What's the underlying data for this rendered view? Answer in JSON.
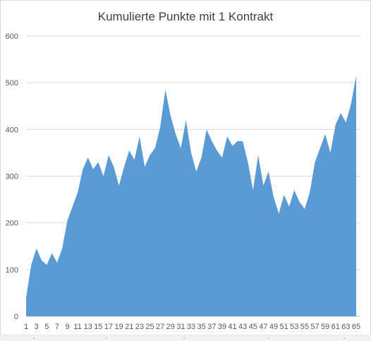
{
  "chart_data": {
    "type": "area",
    "title": "Kumulierte Punkte mit 1 Kontrakt",
    "xlabel": "",
    "ylabel": "",
    "ylim": [
      0,
      600
    ],
    "yticks": [
      0,
      100,
      200,
      300,
      400,
      500,
      600
    ],
    "xticks": [
      1,
      3,
      5,
      7,
      9,
      11,
      13,
      15,
      17,
      19,
      21,
      23,
      25,
      27,
      29,
      31,
      33,
      35,
      37,
      39,
      41,
      43,
      45,
      47,
      49,
      51,
      53,
      55,
      57,
      59,
      61,
      63,
      65
    ],
    "grid": true,
    "legend": "none",
    "color": "#5b9bd5",
    "x": [
      1,
      2,
      3,
      4,
      5,
      6,
      7,
      8,
      9,
      10,
      11,
      12,
      13,
      14,
      15,
      16,
      17,
      18,
      19,
      20,
      21,
      22,
      23,
      24,
      25,
      26,
      27,
      28,
      29,
      30,
      31,
      32,
      33,
      34,
      35,
      36,
      37,
      38,
      39,
      40,
      41,
      42,
      43,
      44,
      45,
      46,
      47,
      48,
      49,
      50,
      51,
      52,
      53,
      54,
      55,
      56,
      57,
      58,
      59,
      60,
      61,
      62,
      63,
      64,
      65
    ],
    "series": [
      {
        "values": [
          40,
          110,
          145,
          120,
          110,
          135,
          115,
          145,
          205,
          235,
          265,
          315,
          340,
          315,
          330,
          300,
          345,
          320,
          280,
          320,
          355,
          335,
          385,
          320,
          345,
          360,
          405,
          485,
          430,
          390,
          360,
          420,
          350,
          310,
          340,
          400,
          375,
          355,
          340,
          385,
          365,
          375,
          375,
          330,
          270,
          345,
          280,
          310,
          255,
          220,
          260,
          235,
          270,
          245,
          230,
          265,
          330,
          360,
          390,
          350,
          410,
          435,
          415,
          455,
          515
        ]
      }
    ]
  }
}
